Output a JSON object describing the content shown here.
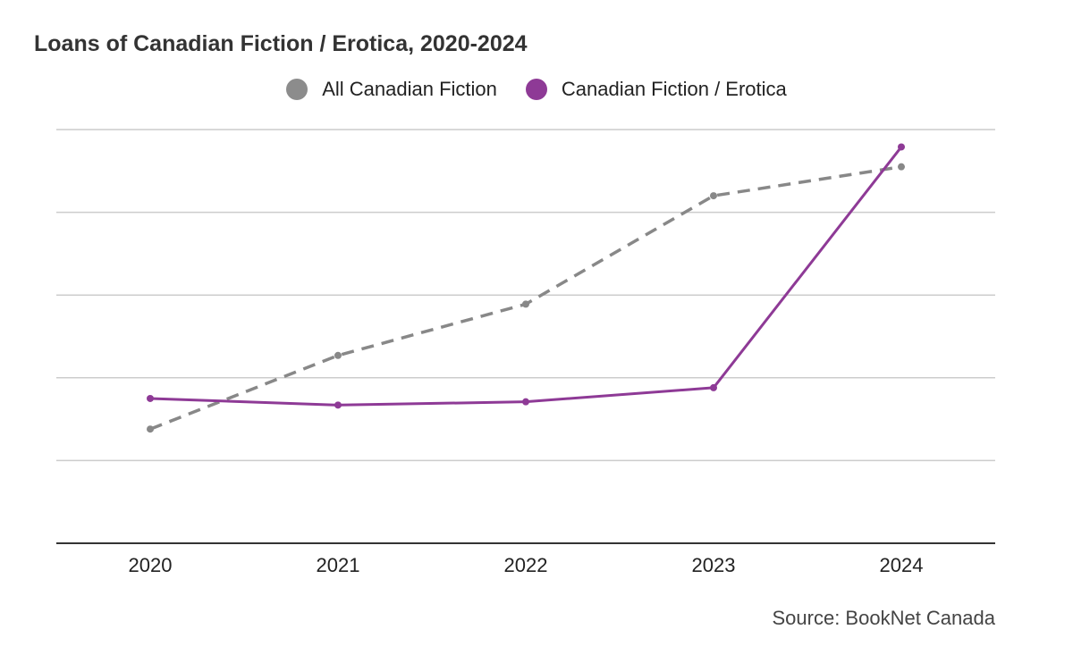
{
  "chart_data": {
    "type": "line",
    "title": "Loans of Canadian Fiction / Erotica, 2020-2024",
    "categories": [
      "2020",
      "2021",
      "2022",
      "2023",
      "2024"
    ],
    "ylim": [
      0,
      5
    ],
    "y_tick_labels_shown": false,
    "grid": true,
    "legend_position": "top",
    "series": [
      {
        "name": "All Canadian Fiction",
        "values": [
          1.38,
          2.27,
          2.89,
          4.2,
          4.55
        ],
        "color": "#888888",
        "line_style": "dashed"
      },
      {
        "name": "Canadian Fiction / Erotica",
        "values": [
          1.75,
          1.67,
          1.71,
          1.88,
          4.79
        ],
        "color": "#8e3a96",
        "line_style": "solid"
      }
    ],
    "source": "Source: BookNet Canada"
  }
}
